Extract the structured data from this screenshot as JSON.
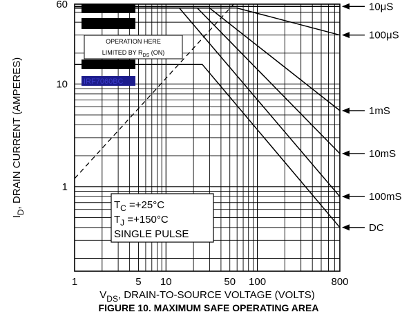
{
  "chart_data": {
    "type": "line",
    "title": "FIGURE 10. MAXIMUM SAFE OPERATING AREA",
    "xlabel": {
      "main": "V",
      "sub": "DS",
      "rest": ", DRAIN-TO-SOURCE VOLTAGE (VOLTS)"
    },
    "ylabel": {
      "main": "I",
      "sub": "D",
      "rest": ", DRAIN CURRENT (AMPERES)"
    },
    "x_scale": "log",
    "y_scale": "log",
    "xlim": [
      1,
      800
    ],
    "ylim": [
      0.15,
      60
    ],
    "grid": true,
    "x_ticks": [
      {
        "value": 1,
        "label": "1"
      },
      {
        "value": 5,
        "label": "5"
      },
      {
        "value": 10,
        "label": "10"
      },
      {
        "value": 50,
        "label": "50"
      },
      {
        "value": 100,
        "label": "100"
      },
      {
        "value": 800,
        "label": "800"
      }
    ],
    "y_ticks": [
      {
        "value": 1,
        "label": "1"
      },
      {
        "value": 10,
        "label": "10"
      },
      {
        "value": 60,
        "label": "60"
      }
    ],
    "rds_on_limit": {
      "style": "dashed",
      "x": [
        1,
        55
      ],
      "y": [
        1.2,
        60
      ],
      "label_line1": "OPERATION HERE",
      "label_line2_main": "LIMITED BY R",
      "label_line2_sub": "DS",
      "label_line2_rest": " (ON)"
    },
    "curves": [
      {
        "name": "10μS",
        "x": [
          1,
          800
        ],
        "y": [
          57,
          57
        ]
      },
      {
        "name": "100μS",
        "x": [
          1,
          60,
          800
        ],
        "y": [
          55,
          55,
          30
        ]
      },
      {
        "name": "1mS",
        "x": [
          1,
          30,
          800
        ],
        "y": [
          55,
          55,
          5.5
        ]
      },
      {
        "name": "10mS",
        "x": [
          1,
          22,
          800
        ],
        "y": [
          55,
          55,
          2.1
        ]
      },
      {
        "name": "100mS",
        "x": [
          1,
          14,
          800
        ],
        "y": [
          55,
          55,
          0.8
        ]
      },
      {
        "name": "DC",
        "x": [
          1,
          25,
          800
        ],
        "y": [
          15.5,
          15.5,
          0.4
        ]
      }
    ],
    "annotations": [
      {
        "main": "T",
        "sub": "C",
        "rest": " =+25°C"
      },
      {
        "main": "T",
        "sub": "J",
        "rest": " =+150°C"
      },
      {
        "main": "SINGLE PULSE",
        "sub": "",
        "rest": ""
      }
    ],
    "redacted_bars": 4,
    "part_number": "IRF7060BC",
    "colors": {
      "ink": "#000000",
      "redaction": "#000000",
      "part_bg": "#1c1c8c",
      "part_text": "#3a3ac8",
      "background": "#ffffff"
    }
  }
}
